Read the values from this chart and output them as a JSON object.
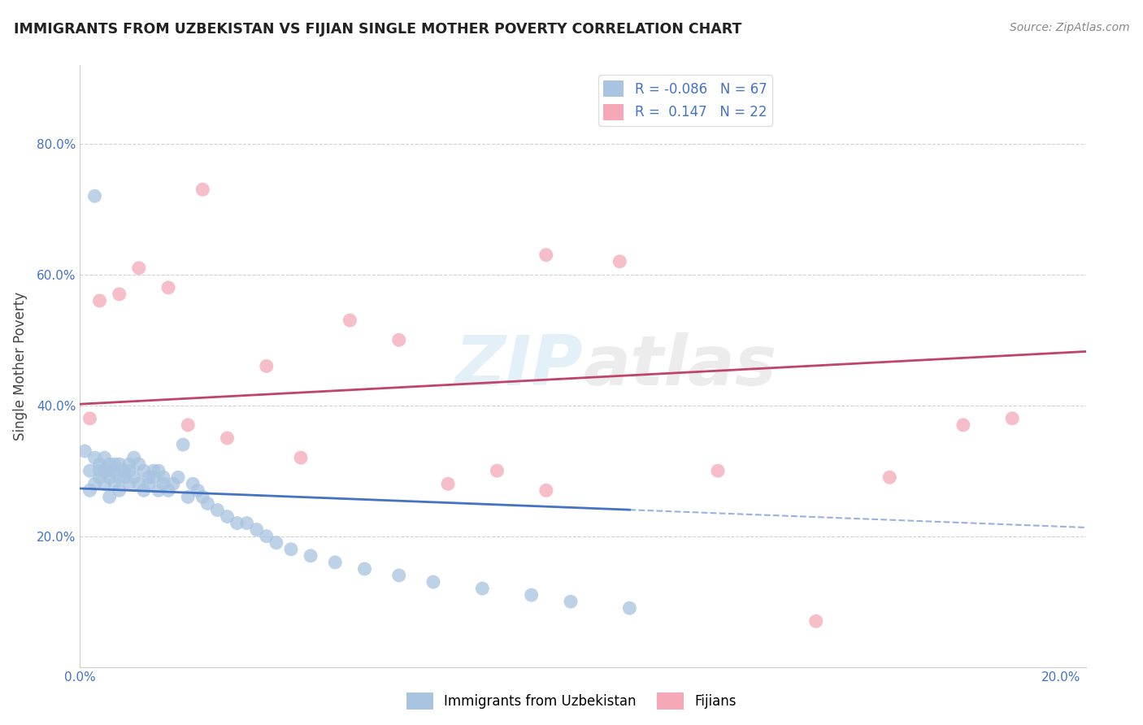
{
  "title": "IMMIGRANTS FROM UZBEKISTAN VS FIJIAN SINGLE MOTHER POVERTY CORRELATION CHART",
  "source": "Source: ZipAtlas.com",
  "ylabel": "Single Mother Poverty",
  "blue_R": -0.086,
  "blue_N": 67,
  "pink_R": 0.147,
  "pink_N": 22,
  "blue_color": "#a8c4e0",
  "pink_color": "#f4a8b8",
  "blue_line_color": "#4472c4",
  "pink_line_color": "#c0446a",
  "tick_color": "#4472c4",
  "legend_label_blue": "Immigrants from Uzbekistan",
  "legend_label_pink": "Fijians",
  "title_color": "#222222",
  "source_color": "#888888",
  "grid_color": "#cccccc",
  "blue_scatter_x": [
    0.001,
    0.002,
    0.002,
    0.003,
    0.003,
    0.003,
    0.004,
    0.004,
    0.004,
    0.005,
    0.005,
    0.005,
    0.006,
    0.006,
    0.006,
    0.006,
    0.007,
    0.007,
    0.007,
    0.008,
    0.008,
    0.008,
    0.009,
    0.009,
    0.01,
    0.01,
    0.01,
    0.011,
    0.011,
    0.012,
    0.012,
    0.013,
    0.013,
    0.014,
    0.014,
    0.015,
    0.015,
    0.016,
    0.016,
    0.017,
    0.017,
    0.018,
    0.019,
    0.02,
    0.021,
    0.022,
    0.023,
    0.024,
    0.025,
    0.026,
    0.028,
    0.03,
    0.032,
    0.034,
    0.036,
    0.038,
    0.04,
    0.043,
    0.047,
    0.052,
    0.058,
    0.065,
    0.072,
    0.082,
    0.092,
    0.1,
    0.112
  ],
  "blue_scatter_y": [
    0.33,
    0.3,
    0.27,
    0.32,
    0.28,
    0.72,
    0.31,
    0.3,
    0.29,
    0.32,
    0.28,
    0.3,
    0.26,
    0.3,
    0.29,
    0.31,
    0.3,
    0.28,
    0.31,
    0.29,
    0.27,
    0.31,
    0.3,
    0.29,
    0.28,
    0.31,
    0.3,
    0.29,
    0.32,
    0.28,
    0.31,
    0.27,
    0.3,
    0.29,
    0.28,
    0.3,
    0.29,
    0.27,
    0.3,
    0.28,
    0.29,
    0.27,
    0.28,
    0.29,
    0.34,
    0.26,
    0.28,
    0.27,
    0.26,
    0.25,
    0.24,
    0.23,
    0.22,
    0.22,
    0.21,
    0.2,
    0.19,
    0.18,
    0.17,
    0.16,
    0.15,
    0.14,
    0.13,
    0.12,
    0.11,
    0.1,
    0.09
  ],
  "pink_scatter_x": [
    0.002,
    0.025,
    0.004,
    0.008,
    0.012,
    0.018,
    0.022,
    0.03,
    0.038,
    0.045,
    0.055,
    0.065,
    0.075,
    0.085,
    0.095,
    0.11,
    0.13,
    0.15,
    0.165,
    0.18,
    0.19,
    0.095
  ],
  "pink_scatter_y": [
    0.38,
    0.73,
    0.56,
    0.57,
    0.61,
    0.58,
    0.37,
    0.35,
    0.46,
    0.32,
    0.53,
    0.5,
    0.28,
    0.3,
    0.63,
    0.62,
    0.3,
    0.07,
    0.29,
    0.37,
    0.38,
    0.27
  ]
}
